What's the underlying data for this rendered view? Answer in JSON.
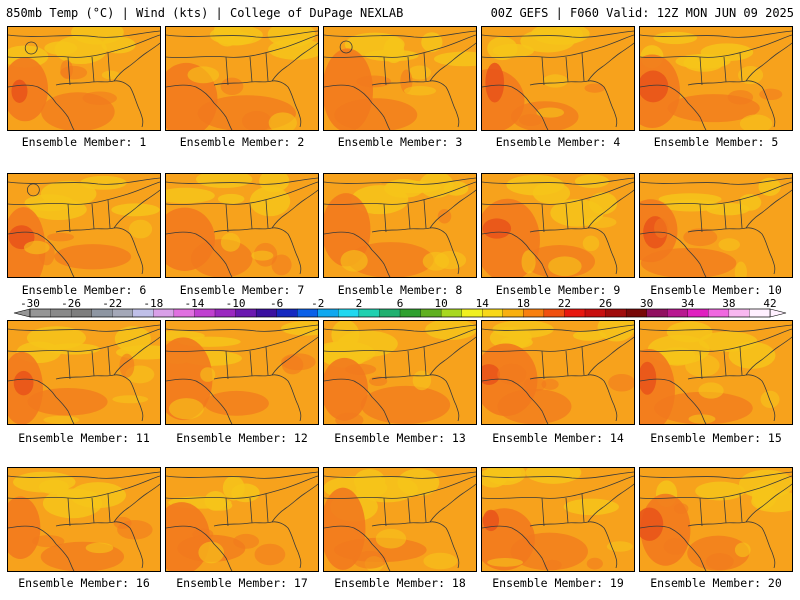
{
  "header": {
    "left": "850mb Temp (°C) | Wind (kts) | College of DuPage NEXLAB",
    "right": "00Z GEFS | F060 Valid: 12Z MON JUN 09 2025"
  },
  "member_label_prefix": "Ensemble Member: ",
  "members": [
    1,
    2,
    3,
    4,
    5,
    6,
    7,
    8,
    9,
    10,
    11,
    12,
    13,
    14,
    15,
    16,
    17,
    18,
    19,
    20
  ],
  "colorbar": {
    "min": -30,
    "max": 42,
    "step": 2,
    "tick_labels": [
      "-30",
      "-26",
      "-22",
      "-18",
      "-14",
      "-10",
      "-6",
      "-2",
      "2",
      "6",
      "10",
      "14",
      "18",
      "22",
      "26",
      "30",
      "34",
      "38",
      "42"
    ],
    "colors": [
      "#969696",
      "#8a8a8a",
      "#7e7e7e",
      "#8e96a2",
      "#a4a8b8",
      "#bfbfe8",
      "#d9a0e8",
      "#e070e0",
      "#c040d0",
      "#9a28c0",
      "#6a18b0",
      "#3a10a0",
      "#1428c0",
      "#0a60e8",
      "#10a8f0",
      "#20d8f0",
      "#20d0b0",
      "#20b070",
      "#30a030",
      "#60b020",
      "#a8d820",
      "#f0f020",
      "#f8d818",
      "#f8b010",
      "#f88010",
      "#f05010",
      "#e81810",
      "#c81010",
      "#a00c0c",
      "#780808",
      "#901060",
      "#b81890",
      "#e020c0",
      "#f068e0",
      "#f8b8f0",
      "#fff0ff"
    ]
  },
  "map_colors": {
    "base": "#f7a21c",
    "warm": "#f27a1e",
    "hot": "#e8521a",
    "cool": "#f6c41a",
    "line": "#3a3a3a"
  }
}
